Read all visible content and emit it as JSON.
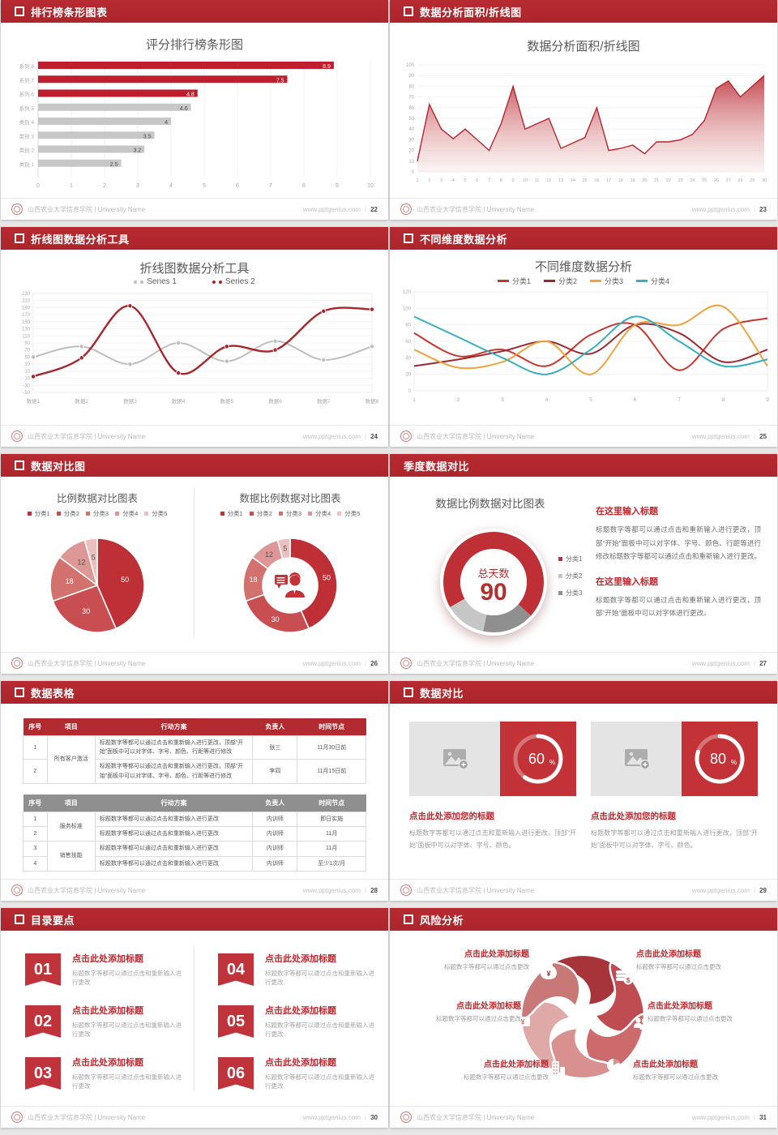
{
  "footer": {
    "org": "山西农业大学信息学院 | University Name",
    "site": "www.pptgenius.com"
  },
  "palette": {
    "header_red": "#B12A30",
    "accent_red": "#C0262C",
    "bar_red": "#BE1E2D",
    "bar_gray": "#C7C7C7",
    "series_gray": "#BDBDBD",
    "series_dark_red": "#A6262C",
    "line_red": "#C8372D",
    "line_maroon": "#9A2832",
    "orange": "#F0A23C",
    "teal": "#35AEC1",
    "card_red": "#C23237",
    "pie_shades": [
      "#BE2F36",
      "#C84E52",
      "#D3716F",
      "#DF9795",
      "#ECC0BF"
    ],
    "donut_gray_light": "#C6C6C6",
    "donut_gray_dark": "#8F8F8F"
  },
  "slides": [
    {
      "header": "排行榜条形图表",
      "page": "22",
      "title": "评分排行榜条形图"
    },
    {
      "header": "数据分析面积/折线图",
      "page": "23",
      "title": "数据分析面积/折线图"
    },
    {
      "header": "折线图数据分析工具",
      "page": "24",
      "title": "折线图数据分析工具"
    },
    {
      "header": "不同维度数据分析",
      "page": "25",
      "title": "不同维度数据分析"
    },
    {
      "header": "数据对比图",
      "page": "26",
      "left_title": "比例数据对比图表",
      "right_title": "数据比例数据对比图表"
    },
    {
      "header": "季度数据对比",
      "page": "27",
      "title": "数据比例数据对比图表",
      "center_label": "总天数",
      "center_value": "90",
      "legend": [
        "分类1",
        "分类2",
        "分类3"
      ],
      "blocks": [
        {
          "heading": "在这里输入标题",
          "body": "标题数字等都可以通过点击和重新输入进行更改，顶部“开始”面板中可以对字体、字号、颜色、行距等进行修改标题数字等都可以通过点击和重新输入进行更改。"
        },
        {
          "heading": "在这里输入标题",
          "body": "标题数字等都可以通过点击和重新输入进行更改，顶部“开始”面板中可以对字体进行更改。"
        }
      ]
    },
    {
      "header": "数据表格",
      "page": "28"
    },
    {
      "header": "数据对比",
      "page": "29",
      "cards": [
        {
          "pct": "60",
          "title": "点击此处添加您的标题",
          "desc": "标题数字等都可以通过点击和重新输入进行更改，顶部“开始”面板中可以对字体、字号、颜色。"
        },
        {
          "pct": "80",
          "title": "点击此处添加您的标题",
          "desc": "标题数字等都可以通过点击和重新输入进行更改，顶部“开始”面板中可以对字体、字号、颜色。"
        }
      ]
    },
    {
      "header": "目录要点",
      "page": "30",
      "items": [
        {
          "num": "01",
          "title": "点击此处添加标题",
          "desc": "标题数字等都可以通过点击和重新输入进行更改"
        },
        {
          "num": "02",
          "title": "点击此处添加标题",
          "desc": "标题数字等都可以通过点击和重新输入进行更改"
        },
        {
          "num": "03",
          "title": "点击此处添加标题",
          "desc": "标题数字等都可以通过点击和重新输入进行更改"
        },
        {
          "num": "04",
          "title": "点击此处添加标题",
          "desc": "标题数字等都可以通过点击和重新输入进行更改"
        },
        {
          "num": "05",
          "title": "点击此处添加标题",
          "desc": "标题数字等都可以通过点击和重新输入进行更改"
        },
        {
          "num": "06",
          "title": "点击此处添加标题",
          "desc": "标题数字等都可以通过点击和重新输入进行更改"
        }
      ]
    },
    {
      "header": "风险分析",
      "page": "31",
      "icons": [
        "money-bag-icon",
        "coins-icon",
        "people-icon",
        "pie-chart-icon",
        "building-icon",
        "wallet-icon"
      ],
      "items": [
        {
          "title": "点击此处添加标题",
          "desc": "标题数字等都可以通过点击更改"
        },
        {
          "title": "点击此处添加标题",
          "desc": "标题数字等都可以通过点击更改"
        },
        {
          "title": "点击此处添加标题",
          "desc": "标题数字等都可以通过点击更改"
        },
        {
          "title": "点击此处添加标题",
          "desc": "标题数字等都可以通过点击更改"
        },
        {
          "title": "点击此处添加标题",
          "desc": "标题数字等都可以通过点击更改"
        },
        {
          "title": "点击此处添加标题",
          "desc": "标题数字等都可以通过点击更改"
        }
      ]
    }
  ],
  "chart_data": [
    {
      "slide": "22",
      "type": "bar",
      "orientation": "horizontal",
      "title": "评分排行榜条形图",
      "categories": [
        "系列 8",
        "系列 7",
        "系列 6",
        "系列 5",
        "类别 4",
        "类别 3",
        "类别 2",
        "类别 1"
      ],
      "values": [
        8.9,
        7.5,
        4.8,
        4.6,
        4,
        3.5,
        3.2,
        2.5
      ],
      "highlight_count": 3,
      "xlim": [
        0,
        10
      ],
      "xticks": [
        0,
        1,
        2,
        3,
        4,
        5,
        6,
        7,
        8,
        9,
        10
      ],
      "grid": true,
      "legend": "none"
    },
    {
      "slide": "23",
      "type": "area",
      "title": "数据分析面积/折线图",
      "x": [
        1,
        2,
        3,
        4,
        5,
        6,
        7,
        8,
        9,
        10,
        11,
        12,
        13,
        14,
        15,
        16,
        17,
        18,
        19,
        20,
        21,
        22,
        23,
        24,
        25,
        26,
        27,
        28,
        29,
        30
      ],
      "values": [
        10,
        63,
        40,
        31,
        40,
        30,
        20,
        45,
        80,
        40,
        45,
        50,
        22,
        27,
        32,
        60,
        20,
        22,
        25,
        17,
        28,
        28,
        30,
        35,
        48,
        78,
        85,
        70,
        80,
        90
      ],
      "ylim": [
        0,
        100
      ],
      "ytick_step": 10,
      "grid": true,
      "color": "#BE3A41"
    },
    {
      "slide": "24",
      "type": "line",
      "title": "折线图数据分析工具",
      "categories": [
        "数据1",
        "数据2",
        "数据3",
        "数据4",
        "数据5",
        "数据6",
        "数据7",
        "数据8"
      ],
      "series": [
        {
          "name": "Series 1",
          "color": "#BDBDBD",
          "values": [
            50,
            80,
            30,
            90,
            38,
            95,
            42,
            80
          ]
        },
        {
          "name": "Series 2",
          "color": "#A6262C",
          "values": [
            -5,
            48,
            195,
            5,
            80,
            70,
            180,
            185
          ]
        }
      ],
      "ylim": [
        -50,
        230
      ],
      "ytick_step": 20,
      "markers": true,
      "legend_position": "top"
    },
    {
      "slide": "25",
      "type": "line",
      "title": "不同维度数据分析",
      "x": [
        1,
        2,
        3,
        4,
        5,
        6,
        7,
        8,
        9
      ],
      "series": [
        {
          "name": "分类1",
          "color": "#C8372D",
          "values": [
            70,
            42,
            50,
            30,
            68,
            80,
            25,
            75,
            88
          ]
        },
        {
          "name": "分类2",
          "color": "#9A2832",
          "values": [
            30,
            38,
            48,
            60,
            45,
            80,
            70,
            35,
            50
          ]
        },
        {
          "name": "分类3",
          "color": "#F0A23C",
          "values": [
            50,
            28,
            35,
            60,
            20,
            80,
            80,
            102,
            30
          ]
        },
        {
          "name": "分类4",
          "color": "#35AEC1",
          "values": [
            90,
            65,
            40,
            20,
            50,
            90,
            60,
            30,
            38
          ]
        }
      ],
      "ylim": [
        0,
        120
      ],
      "ytick_step": 20,
      "markers": false,
      "legend_position": "top"
    },
    {
      "slide": "26",
      "type": "pie",
      "title": "比例数据对比图表",
      "labels": [
        "分类1",
        "分类2",
        "分类3",
        "分类4",
        "分类5"
      ],
      "values": [
        50,
        30,
        18,
        12,
        5
      ],
      "colors": [
        "#BE2F36",
        "#C84E52",
        "#D3716F",
        "#DF9795",
        "#ECC0BF"
      ]
    },
    {
      "slide": "26",
      "type": "donut",
      "title": "数据比例数据对比图表",
      "labels": [
        "分类1",
        "分类2",
        "分类3",
        "分类4",
        "分类5"
      ],
      "values": [
        50,
        30,
        18,
        12,
        5
      ],
      "colors": [
        "#BE2F36",
        "#C84E52",
        "#D3716F",
        "#DF9795",
        "#ECC0BF"
      ],
      "center_icon": "presenter-icon"
    },
    {
      "slide": "27",
      "type": "donut",
      "title": "数据比例数据对比图表",
      "center_label": "总天数",
      "center_value": "90",
      "labels": [
        "分类1",
        "分类2",
        "分类3"
      ],
      "values": [
        63,
        12,
        15
      ],
      "colors": [
        "#BF3036",
        "#C6C6C6",
        "#8F8F8F"
      ],
      "draw_order": [
        {
          "value": 63,
          "color": "#BF3036"
        },
        {
          "value": 15,
          "color": "#8F8F8F"
        },
        {
          "value": 12,
          "color": "#C6C6C6"
        }
      ],
      "start_deg": 240
    },
    {
      "slide": "28",
      "type": "table",
      "header_bg": "#B12B31",
      "columns": [
        "序号",
        "项目",
        "行动方案",
        "负责人",
        "时间节点"
      ],
      "rows": [
        {
          "no": "1",
          "item": "所有客户激活",
          "item_span": 2,
          "plan": "标题数字等都可以通过点击和重新输入进行更改，顶部“开始”面板中可以对字体、字号、颜色、行距等进行修改",
          "owner": "张三",
          "time": "11月30日前"
        },
        {
          "no": "2",
          "plan": "标题数字等都可以通过点击和重新输入进行更改，顶部“开始”面板中可以对字体、字号、颜色、行距等进行修改",
          "owner": "李四",
          "time": "11月15日前"
        }
      ]
    },
    {
      "slide": "28",
      "type": "table",
      "header_bg": "#8F8F8F",
      "columns": [
        "序号",
        "项目",
        "行动方案",
        "负责人",
        "时间节点"
      ],
      "rows": [
        {
          "no": "1",
          "item": "服务标准",
          "item_span": 2,
          "plan": "标题数字等都可以通过点击和重新输入进行更改",
          "owner": "内训师",
          "time": "即日实施"
        },
        {
          "no": "2",
          "plan": "标题数字等都可以通过点击和重新输入进行更改",
          "owner": "内训师",
          "time": "11月"
        },
        {
          "no": "3",
          "item": "销售技能",
          "item_span": 2,
          "plan": "标题数字等都可以通过点击和重新输入进行更改",
          "owner": "内训师",
          "time": "11月"
        },
        {
          "no": "4",
          "plan": "标题数字等都可以通过点击和重新输入进行更改",
          "owner": "内训师",
          "time": "至少1次/月"
        }
      ]
    },
    {
      "slide": "29",
      "type": "gauge",
      "values": [
        60,
        80
      ],
      "unit": "%",
      "ring_color": "#FFFFFF"
    }
  ]
}
